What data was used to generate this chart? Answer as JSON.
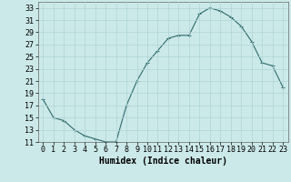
{
  "x": [
    0,
    1,
    2,
    3,
    4,
    5,
    6,
    7,
    8,
    9,
    10,
    11,
    12,
    13,
    14,
    15,
    16,
    17,
    18,
    19,
    20,
    21,
    22,
    23
  ],
  "y": [
    18,
    15,
    14.5,
    13,
    12,
    11.5,
    11,
    11,
    17,
    21,
    24,
    26,
    28,
    28.5,
    28.5,
    32,
    33,
    32.5,
    31.5,
    30,
    27.5,
    24,
    23.5,
    20
  ],
  "line_color": "#2d6b6b",
  "marker": "+",
  "bg_color": "#cce9e9",
  "grid_color": "#afd4d4",
  "xlabel": "Humidex (Indice chaleur)",
  "xlim": [
    -0.5,
    23.5
  ],
  "ylim": [
    11,
    34
  ],
  "yticks": [
    11,
    13,
    15,
    17,
    19,
    21,
    23,
    25,
    27,
    29,
    31,
    33
  ],
  "xticks": [
    0,
    1,
    2,
    3,
    4,
    5,
    6,
    7,
    8,
    9,
    10,
    11,
    12,
    13,
    14,
    15,
    16,
    17,
    18,
    19,
    20,
    21,
    22,
    23
  ],
  "xtick_labels": [
    "0",
    "1",
    "2",
    "3",
    "4",
    "5",
    "6",
    "7",
    "8",
    "9",
    "10",
    "11",
    "12",
    "13",
    "14",
    "15",
    "16",
    "17",
    "18",
    "19",
    "20",
    "21",
    "22",
    "23"
  ],
  "xlabel_fontsize": 7,
  "tick_fontsize": 6,
  "marker_size": 3,
  "line_width": 0.8
}
